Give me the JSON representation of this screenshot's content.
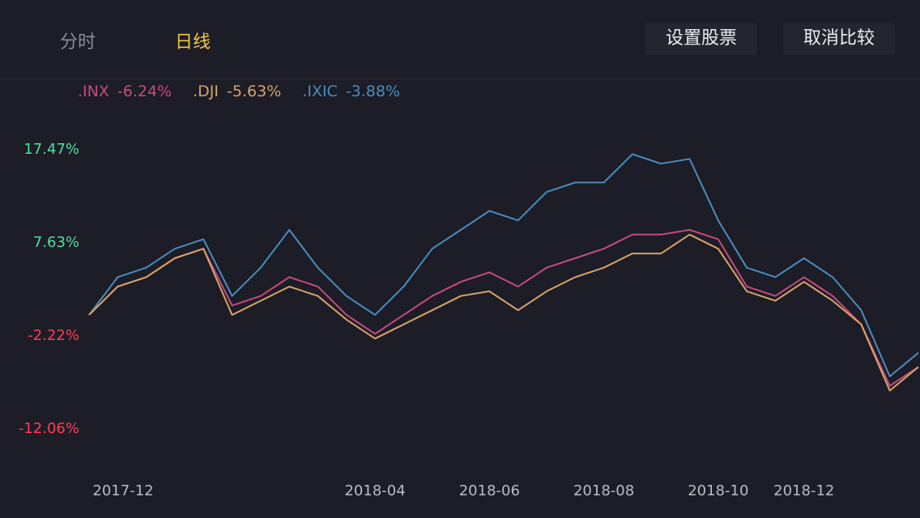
{
  "tabs": {
    "time_label": "分时",
    "day_label": "日线"
  },
  "buttons": {
    "set_stock": "设置股票",
    "cancel_compare": "取消比较"
  },
  "colors": {
    "accent": "#f3c74a",
    "inx": "#c64a7e",
    "dji": "#d8a46a",
    "ixic": "#4a8cc0",
    "positive": "#4fe0a0",
    "negative": "#ff3b5c",
    "background": "#1c1d26"
  },
  "legend": [
    {
      "symbol": ".INX",
      "change": "-6.24%"
    },
    {
      "symbol": ".DJI",
      "change": "-5.63%"
    },
    {
      "symbol": ".IXIC",
      "change": "-3.88%"
    }
  ],
  "chart_data": {
    "type": "line",
    "title": "",
    "xlabel": "",
    "ylabel": "",
    "ylim": [
      -12.06,
      17.47
    ],
    "y_ticks": [
      "17.47%",
      "7.63%",
      "-2.22%",
      "-12.06%"
    ],
    "y_tick_values": [
      17.47,
      7.63,
      -2.22,
      -12.06
    ],
    "x_ticks": [
      "2017-12",
      "2018-04",
      "2018-06",
      "2018-08",
      "2018-10",
      "2018-12"
    ],
    "x_tick_index": [
      1,
      10,
      14,
      18,
      22,
      25
    ],
    "x": [
      "2017-11-17",
      "2017-12-01",
      "2017-12-15",
      "2018-01-01",
      "2018-01-15",
      "2018-02-01",
      "2018-02-15",
      "2018-03-01",
      "2018-03-15",
      "2018-04-01",
      "2018-04-15",
      "2018-05-01",
      "2018-05-15",
      "2018-06-01",
      "2018-06-15",
      "2018-07-01",
      "2018-07-15",
      "2018-08-01",
      "2018-08-15",
      "2018-09-01",
      "2018-09-15",
      "2018-10-01",
      "2018-10-15",
      "2018-11-01",
      "2018-11-15",
      "2018-12-01",
      "2018-12-15",
      "2018-12-24",
      "2019-01-01",
      "2019-01-10"
    ],
    "series": [
      {
        "name": ".INX",
        "values": [
          0.0,
          3.0,
          4.0,
          6.0,
          7.0,
          1.0,
          2.0,
          4.0,
          3.0,
          0.0,
          -2.0,
          0.0,
          2.0,
          3.5,
          4.5,
          3.0,
          5.0,
          6.0,
          7.0,
          8.5,
          8.5,
          9.0,
          8.0,
          3.0,
          2.0,
          4.0,
          2.0,
          -1.0,
          -7.5,
          -5.5
        ]
      },
      {
        "name": ".DJI",
        "values": [
          0.0,
          3.0,
          4.0,
          6.0,
          7.0,
          0.0,
          1.5,
          3.0,
          2.0,
          -0.5,
          -2.5,
          -1.0,
          0.5,
          2.0,
          2.5,
          0.5,
          2.5,
          4.0,
          5.0,
          6.5,
          6.5,
          8.5,
          7.0,
          2.5,
          1.5,
          3.5,
          1.5,
          -1.0,
          -8.0,
          -5.5
        ]
      },
      {
        "name": ".IXIC",
        "values": [
          0.0,
          4.0,
          5.0,
          7.0,
          8.0,
          2.0,
          5.0,
          9.0,
          5.0,
          2.0,
          0.0,
          3.0,
          7.0,
          9.0,
          11.0,
          10.0,
          13.0,
          14.0,
          14.0,
          17.0,
          16.0,
          16.5,
          10.0,
          5.0,
          4.0,
          6.0,
          4.0,
          0.5,
          -6.5,
          -4.0
        ]
      }
    ]
  }
}
